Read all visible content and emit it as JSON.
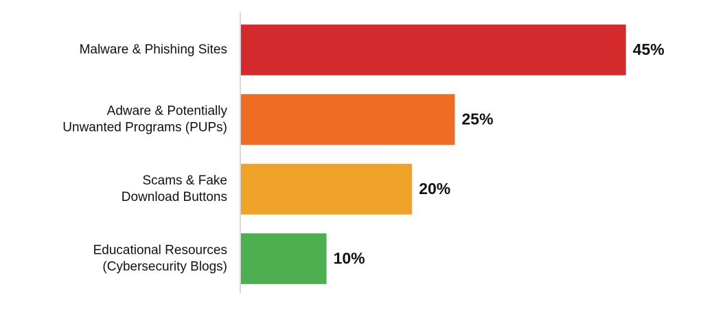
{
  "chart_data": {
    "type": "bar",
    "orientation": "horizontal",
    "categories": [
      [
        "Malware & Phishing Sites"
      ],
      [
        "Adware & Potentially",
        "Unwanted Programs (PUPs)"
      ],
      [
        "Scams & Fake",
        "Download Buttons"
      ],
      [
        "Educational Resources",
        "(Cybersecurity Blogs)"
      ]
    ],
    "values": [
      45,
      25,
      20,
      10
    ],
    "value_labels": [
      "45%",
      "25%",
      "20%",
      "10%"
    ],
    "colors": [
      "#d42a2d",
      "#ef6c25",
      "#efa228",
      "#4caf50"
    ]
  }
}
